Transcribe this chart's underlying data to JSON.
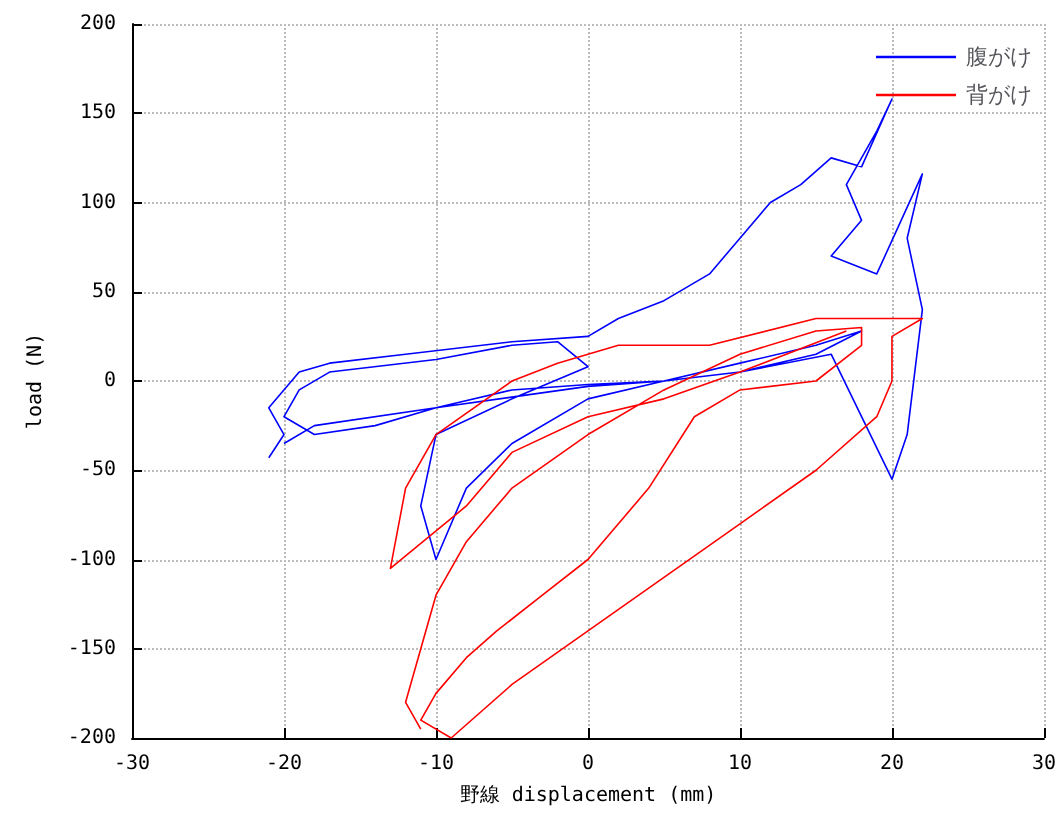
{
  "chart_data": {
    "type": "line",
    "xlabel": "野線 displacement (mm)",
    "ylabel": "load (N)",
    "xlim": [
      -30,
      30
    ],
    "xticks": [
      -30,
      -20,
      -10,
      0,
      10,
      20,
      30
    ],
    "ylim": [
      -200,
      200
    ],
    "yticks": [
      -200,
      -150,
      -100,
      -50,
      0,
      50,
      100,
      150,
      200
    ],
    "grid": true,
    "legend": "top right",
    "marker": "none",
    "line_style": "solid",
    "series": [
      {
        "name": "腹がけ",
        "color": "#0000ff",
        "x": [
          -21,
          -20,
          -21,
          -19,
          -17,
          -12,
          -5,
          0,
          2,
          5,
          8,
          10,
          12,
          14,
          16,
          18,
          20,
          19,
          17,
          18,
          16,
          19,
          22,
          21,
          22,
          21,
          20,
          18,
          16,
          10,
          5,
          0,
          -5,
          -10,
          -14,
          -18,
          -20,
          -19,
          -17,
          -10,
          -5,
          -2,
          0,
          -5,
          -10,
          -11,
          -10,
          -8,
          -5,
          0,
          5,
          10,
          15,
          18,
          15,
          10,
          5,
          0,
          -10,
          -18,
          -20
        ],
        "values": [
          -43,
          -30,
          -15,
          5,
          10,
          15,
          22,
          25,
          35,
          45,
          60,
          80,
          100,
          110,
          125,
          120,
          158,
          140,
          110,
          90,
          70,
          60,
          116,
          80,
          40,
          -30,
          -55,
          -20,
          15,
          5,
          0,
          -2,
          -5,
          -15,
          -25,
          -30,
          -20,
          -5,
          5,
          12,
          20,
          22,
          8,
          -10,
          -30,
          -70,
          -100,
          -60,
          -35,
          -10,
          0,
          10,
          20,
          28,
          15,
          5,
          0,
          -3,
          -15,
          -25,
          -35
        ]
      },
      {
        "name": "背がけ",
        "color": "#ff0000",
        "x": [
          -11,
          -12,
          -11,
          -10,
          -8,
          -5,
          0,
          5,
          10,
          15,
          18,
          18,
          15,
          10,
          7,
          4,
          0,
          -3,
          -6,
          -8,
          -10,
          -11,
          -9,
          -5,
          0,
          5,
          10,
          15,
          19,
          20,
          20,
          22,
          15,
          8,
          2,
          -2,
          -5,
          -10,
          -12,
          -13,
          -8,
          -5,
          0,
          5,
          10,
          17
        ],
        "values": [
          -195,
          -180,
          -150,
          -120,
          -90,
          -60,
          -30,
          -5,
          15,
          28,
          30,
          20,
          0,
          -5,
          -20,
          -60,
          -100,
          -120,
          -140,
          -155,
          -175,
          -190,
          -200,
          -170,
          -140,
          -110,
          -80,
          -50,
          -20,
          0,
          25,
          35,
          35,
          20,
          20,
          10,
          0,
          -30,
          -60,
          -105,
          -70,
          -40,
          -20,
          -10,
          5,
          28
        ]
      }
    ]
  }
}
